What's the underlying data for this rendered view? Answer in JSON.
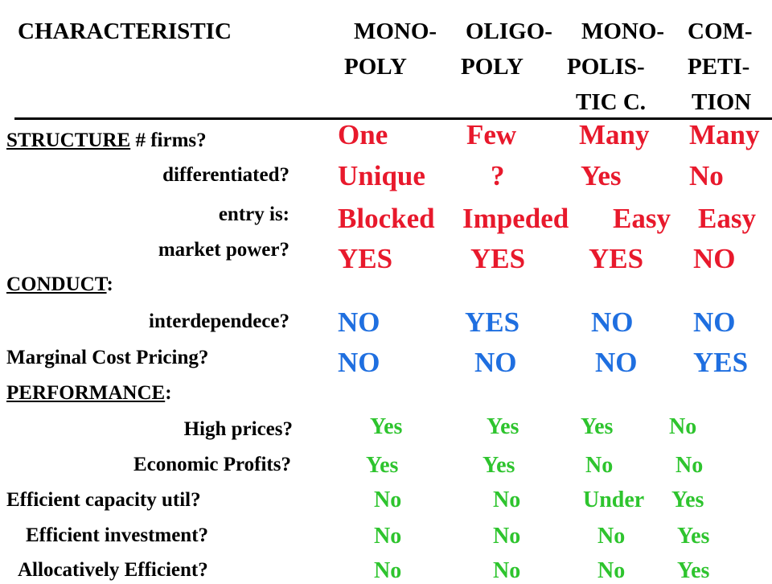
{
  "header": {
    "characteristic": "CHARACTERISTIC",
    "line1": [
      "MONO-",
      "OLIGO-",
      "MONO-",
      "COM-"
    ],
    "line2": [
      "POLY",
      "POLY",
      "POLIS-",
      "PETI-"
    ],
    "line3": [
      "TIC C.",
      "TION"
    ]
  },
  "structure": {
    "heading": "STRUCTURE",
    "firms_label": " # firms?",
    "differentiated_label": "differentiated?",
    "entry_label": "entry is:",
    "power_label": "market  power?",
    "firms": [
      "One",
      "Few",
      "Many",
      "Many"
    ],
    "differentiated": [
      "Unique",
      "?",
      "Yes",
      "No"
    ],
    "entry": [
      "Blocked",
      "Impeded",
      "Easy",
      "Easy"
    ],
    "power": [
      "YES",
      "YES",
      "YES",
      "NO"
    ]
  },
  "conduct": {
    "heading": "CONDUCT",
    "colon": ":",
    "interdependence_label": "interdependece?",
    "mc_label": "Marginal Cost Pricing?",
    "interdependence": [
      "NO",
      "YES",
      "NO",
      "NO"
    ],
    "mc": [
      "NO",
      "NO",
      "NO",
      "YES"
    ]
  },
  "performance": {
    "heading": "PERFORMANCE",
    "colon": ":",
    "high_prices_label": "High prices?",
    "profits_label": "Economic  Profits?",
    "capacity_label": "Efficient capacity util?",
    "investment_label": "Efficient investment?",
    "allocative_label": "Allocatively Efficient?",
    "high_prices": [
      "Yes",
      "Yes",
      "Yes",
      "No"
    ],
    "profits": [
      "Yes",
      "Yes",
      "No",
      "No"
    ],
    "capacity": [
      "No",
      "No",
      "Under",
      "Yes"
    ],
    "investment": [
      "No",
      "No",
      "No",
      "Yes"
    ],
    "allocative": [
      "No",
      "No",
      "No",
      "Yes"
    ]
  },
  "colors": {
    "structure": "#e8192c",
    "conduct": "#1f6fe0",
    "performance": "#2ec42e"
  }
}
